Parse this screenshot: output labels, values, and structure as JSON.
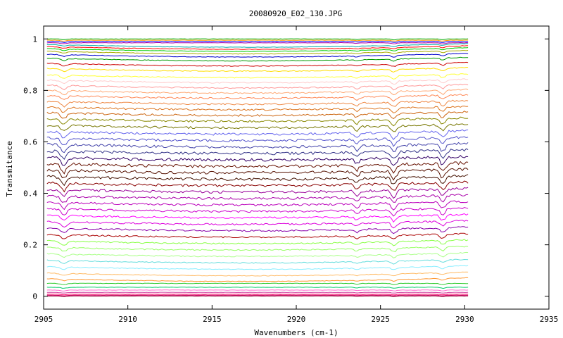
{
  "chart_data": {
    "type": "line",
    "title": "20080920_E02_130.JPG",
    "xlabel": "Wavenumbers (cm-1)",
    "ylabel": "Transmitance",
    "xlim": [
      2905,
      2935
    ],
    "ylim": [
      -0.05,
      1.05
    ],
    "x_ticks": [
      "2905",
      "2910",
      "2915",
      "2920",
      "2925",
      "2930",
      "2935"
    ],
    "y_ticks": [
      "0",
      "0.2",
      "0.4",
      "0.6",
      "0.8",
      "1"
    ],
    "data_x_range": [
      2905.2,
      2930.2
    ],
    "series_offsets": [
      1.0,
      0.995,
      0.99,
      0.985,
      0.978,
      0.97,
      0.962,
      0.952,
      0.94,
      0.925,
      0.905,
      0.885,
      0.86,
      0.84,
      0.82,
      0.8,
      0.78,
      0.757,
      0.735,
      0.713,
      0.69,
      0.665,
      0.64,
      0.615,
      0.59,
      0.565,
      0.54,
      0.515,
      0.49,
      0.465,
      0.44,
      0.415,
      0.39,
      0.365,
      0.34,
      0.315,
      0.29,
      0.265,
      0.24,
      0.215,
      0.19,
      0.165,
      0.14,
      0.115,
      0.09,
      0.068,
      0.05,
      0.035,
      0.024,
      0.015,
      0.008,
      0.004,
      0.001
    ],
    "series_colors": [
      "#00aa00",
      "#ff9900",
      "#0000ff",
      "#aa00aa",
      "#00aaaa",
      "#ff0000",
      "#00cc00",
      "#aaaa00",
      "#0000cc",
      "#009900",
      "#cc0000",
      "#ffdd00",
      "#ffff33",
      "#ffcccc",
      "#ff9999",
      "#ffaa77",
      "#ff8855",
      "#ee8844",
      "#dd7722",
      "#cc6611",
      "#888800",
      "#777700",
      "#6666ee",
      "#5555cc",
      "#4444aa",
      "#333388",
      "#330066",
      "#661100",
      "#551100",
      "#441100",
      "#880000",
      "#990099",
      "#aa00aa",
      "#bb00bb",
      "#cc00cc",
      "#ff00ff",
      "#dd00dd",
      "#8800aa",
      "#aa0000",
      "#88ff44",
      "#99ff66",
      "#aaff88",
      "#66dddd",
      "#88eeff",
      "#ffbb66",
      "#ff9933",
      "#33cc33",
      "#00cc66",
      "#ff66cc",
      "#cc3399",
      "#ff0066",
      "#cc0066",
      "#990033"
    ]
  }
}
